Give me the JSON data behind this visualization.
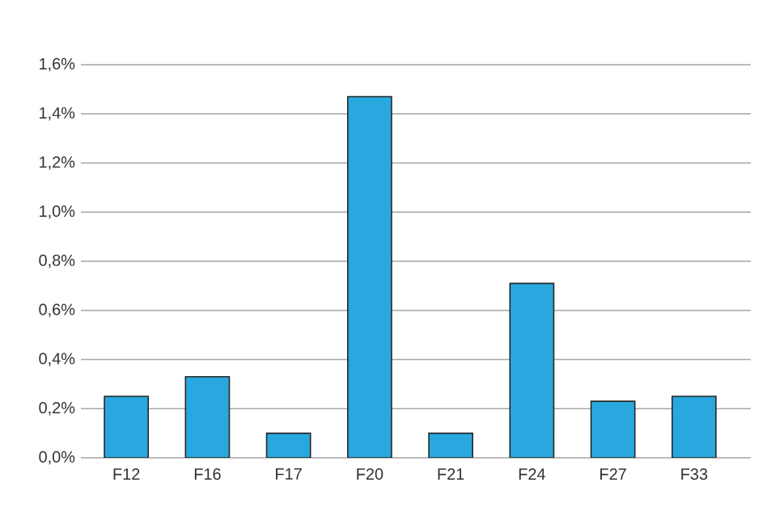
{
  "chart_data": {
    "type": "bar",
    "categories": [
      "F12",
      "F16",
      "F17",
      "F20",
      "F21",
      "F24",
      "F27",
      "F33"
    ],
    "values": [
      0.25,
      0.33,
      0.1,
      1.47,
      0.1,
      0.71,
      0.23,
      0.25
    ],
    "color": "#29a8e0",
    "ylim": [
      0,
      1.6
    ],
    "yticks": [
      {
        "value": 0,
        "label": "0,0%"
      },
      {
        "value": 0.2,
        "label": "0,2%"
      },
      {
        "value": 0.4,
        "label": "0,4%"
      },
      {
        "value": 0.6,
        "label": "0,6%"
      },
      {
        "value": 0.8,
        "label": "0,8%"
      },
      {
        "value": 1.0,
        "label": "1,0%"
      },
      {
        "value": 1.2,
        "label": "1,2%"
      },
      {
        "value": 1.4,
        "label": "1,4%"
      },
      {
        "value": 1.6,
        "label": "1,6%"
      }
    ],
    "grid": "y"
  }
}
